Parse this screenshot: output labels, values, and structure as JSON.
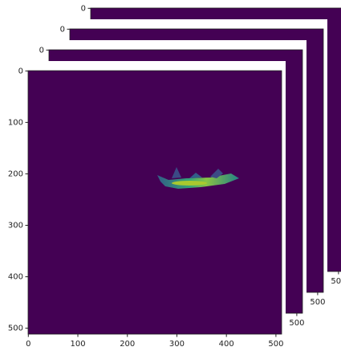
{
  "chart_data": [
    {
      "type": "image",
      "xlim": [
        -0.5,
        511.5
      ],
      "ylim": [
        511.5,
        -0.5
      ],
      "xticks": [
        500
      ],
      "yticks": [
        0
      ],
      "color": "#440154"
    },
    {
      "type": "image",
      "xlim": [
        -0.5,
        511.5
      ],
      "ylim": [
        511.5,
        -0.5
      ],
      "xticks": [
        500
      ],
      "yticks": [
        0
      ],
      "color": "#440154"
    },
    {
      "type": "image",
      "xlim": [
        -0.5,
        511.5
      ],
      "ylim": [
        511.5,
        -0.5
      ],
      "xticks": [
        500
      ],
      "yticks": [
        0
      ],
      "color": "#440154"
    },
    {
      "type": "image",
      "xlim": [
        -0.5,
        511.5
      ],
      "ylim": [
        511.5,
        -0.5
      ],
      "xticks": [
        0,
        100,
        200,
        300,
        400,
        500
      ],
      "yticks": [
        0,
        100,
        200,
        300,
        400,
        500
      ],
      "color": "#440154"
    }
  ]
}
